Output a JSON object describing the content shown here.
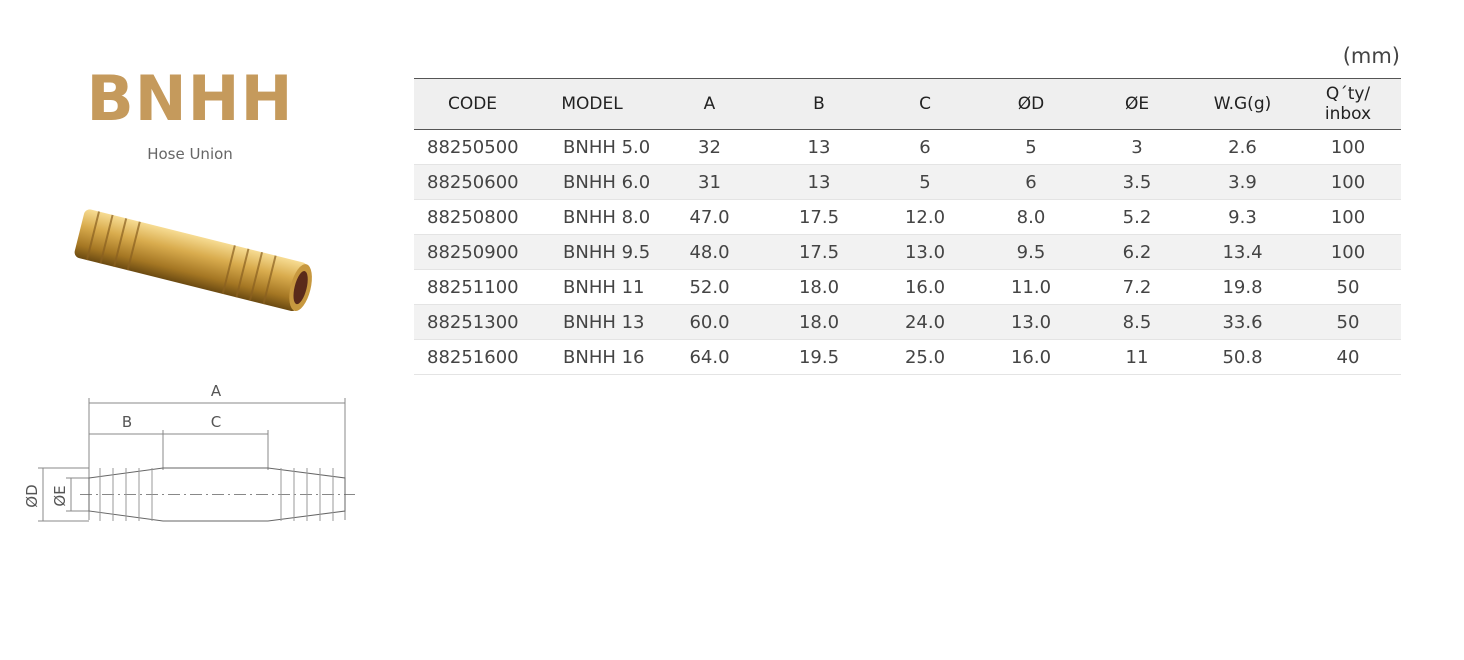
{
  "product": {
    "title": "BNHH",
    "subtitle": "Hose Union"
  },
  "drawing": {
    "a": "A",
    "b": "B",
    "c": "C",
    "d": "ØD",
    "e": "ØE"
  },
  "table": {
    "unit": "(mm)",
    "headers": [
      "CODE",
      "MODEL",
      "A",
      "B",
      "C",
      "ØD",
      "ØE",
      "W.G(g)",
      "Q´ty/\ninbox"
    ],
    "rows": [
      [
        "88250500",
        "BNHH 5.0",
        "32",
        "13",
        "6",
        "5",
        "3",
        "2.6",
        "100"
      ],
      [
        "88250600",
        "BNHH 6.0",
        "31",
        "13",
        "5",
        "6",
        "3.5",
        "3.9",
        "100"
      ],
      [
        "88250800",
        "BNHH 8.0",
        "47.0",
        "17.5",
        "12.0",
        "8.0",
        "5.2",
        "9.3",
        "100"
      ],
      [
        "88250900",
        "BNHH 9.5",
        "48.0",
        "17.5",
        "13.0",
        "9.5",
        "6.2",
        "13.4",
        "100"
      ],
      [
        "88251100",
        "BNHH 11",
        "52.0",
        "18.0",
        "16.0",
        "11.0",
        "7.2",
        "19.8",
        "50"
      ],
      [
        "88251300",
        "BNHH 13",
        "60.0",
        "18.0",
        "24.0",
        "13.0",
        "8.5",
        "33.6",
        "50"
      ],
      [
        "88251600",
        "BNHH 16",
        "64.0",
        "19.5",
        "25.0",
        "16.0",
        "11",
        "50.8",
        "40"
      ]
    ]
  }
}
